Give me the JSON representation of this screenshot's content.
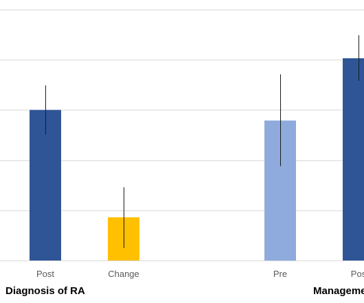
{
  "chart_data": {
    "type": "bar",
    "title": "",
    "xlabel": "",
    "ylabel": "",
    "grid": true,
    "ylim": [
      0,
      5
    ],
    "gridlines": [
      0,
      1,
      2,
      3,
      4,
      5
    ],
    "colors": {
      "post": "#2f5597",
      "change": "#ffc000",
      "pre": "#8faadc",
      "grid": "#d9d9d9",
      "axis": "#d9d9d9",
      "errorbar": "#1a1a1a",
      "text": "#595959"
    },
    "groups": [
      {
        "label": "Diagnosis of RA",
        "bars": [
          {
            "category": "Post",
            "value": 3.0,
            "error_low": 2.51,
            "error_high": 3.49,
            "color_key": "post"
          },
          {
            "category": "Change",
            "value": 0.86,
            "error_low": 0.25,
            "error_high": 1.46,
            "color_key": "change"
          }
        ]
      },
      {
        "label": "Manageme",
        "bars": [
          {
            "category": "Pre",
            "value": 2.79,
            "error_low": 1.88,
            "error_high": 3.71,
            "color_key": "pre"
          },
          {
            "category": "Pos",
            "value": 4.03,
            "error_low": 3.58,
            "error_high": 4.49,
            "color_key": "post"
          }
        ]
      }
    ]
  }
}
